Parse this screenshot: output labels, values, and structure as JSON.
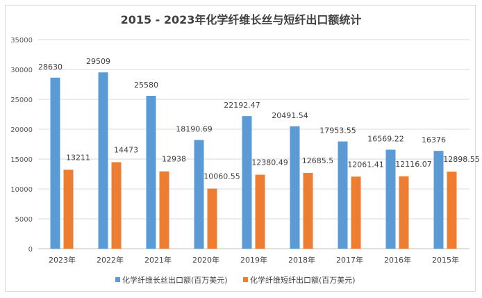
{
  "chart_data": {
    "type": "bar",
    "title": "2015 - 2023年化学纤维长丝与短纤出口额统计",
    "categories": [
      "2023年",
      "2022年",
      "2021年",
      "2020年",
      "2019年",
      "2018年",
      "2017年",
      "2016年",
      "2015年"
    ],
    "series": [
      {
        "name": "化学纤维长丝出口额(百万美元)",
        "color": "#5b9bd5",
        "values": [
          28630,
          29509,
          25580,
          18190.69,
          22192.47,
          20491.54,
          17953.55,
          16569.22,
          16376
        ]
      },
      {
        "name": "化学纤维短纤出口额(百万美元)",
        "color": "#ed7d31",
        "values": [
          13211,
          14473,
          12938,
          10060.55,
          12380.49,
          12685.5,
          12061.41,
          12116.07,
          12898.55
        ]
      }
    ],
    "yticks": [
      "0",
      "5000",
      "10000",
      "15000",
      "20000",
      "25000",
      "30000",
      "35000"
    ],
    "ylim": [
      0,
      35000
    ],
    "grid": true,
    "legend": "bottom",
    "xlabel": "",
    "ylabel": ""
  }
}
